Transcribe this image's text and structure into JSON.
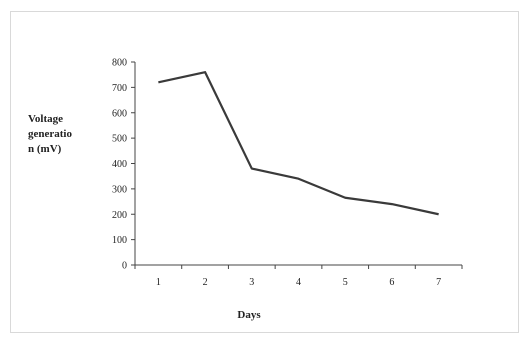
{
  "chart_data": {
    "type": "line",
    "title": "",
    "xlabel": "Days",
    "ylabel_lines": [
      "Voltage",
      "generatio",
      "n (mV)"
    ],
    "x": [
      1,
      2,
      3,
      4,
      5,
      6,
      7
    ],
    "series": [
      {
        "values": [
          720,
          760,
          380,
          340,
          265,
          240,
          200
        ],
        "color": "#3a3a3a"
      }
    ],
    "ylim": [
      0,
      800
    ],
    "yticks": [
      0,
      100,
      200,
      300,
      400,
      500,
      600,
      700,
      800
    ],
    "grid": false,
    "legend": "none"
  }
}
